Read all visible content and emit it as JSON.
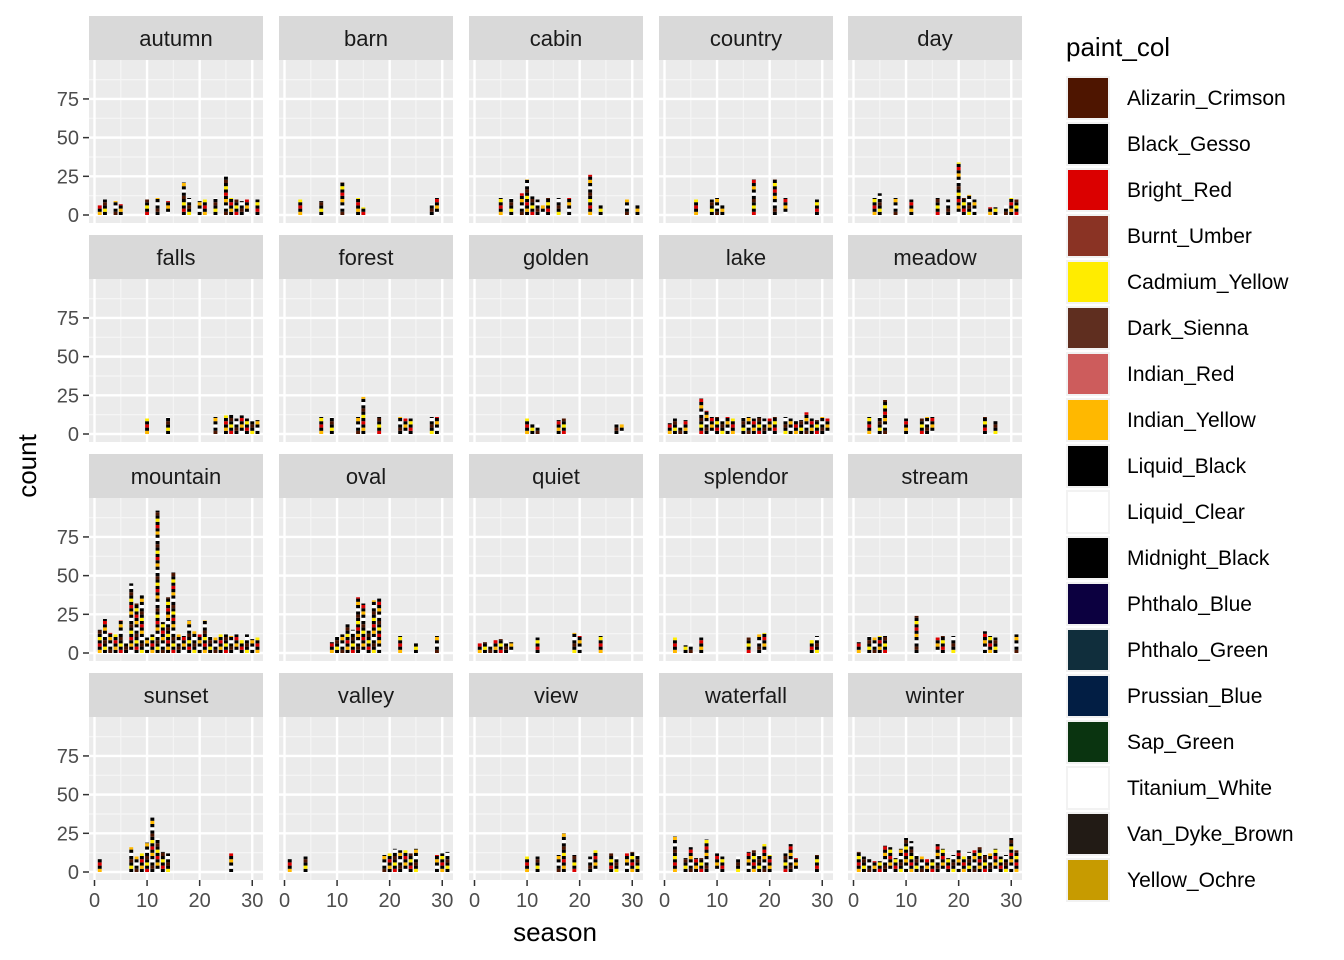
{
  "chart_data": {
    "type": "bar",
    "facet_by": "word",
    "xlabel": "season",
    "ylabel": "count",
    "xlim": [
      0,
      31
    ],
    "ylim": [
      0,
      95
    ],
    "x_ticks": [
      0,
      10,
      20,
      30
    ],
    "y_ticks": [
      0,
      25,
      50,
      75
    ],
    "legend": {
      "title": "paint_col",
      "position": "right",
      "entries": [
        {
          "name": "Alizarin_Crimson",
          "color": "#4E1500"
        },
        {
          "name": "Black_Gesso",
          "color": "#000000"
        },
        {
          "name": "Bright_Red",
          "color": "#DB0000"
        },
        {
          "name": "Burnt_Umber",
          "color": "#8A3324"
        },
        {
          "name": "Cadmium_Yellow",
          "color": "#FFEC00"
        },
        {
          "name": "Dark_Sienna",
          "color": "#5F2E1F"
        },
        {
          "name": "Indian_Red",
          "color": "#CD5C5C"
        },
        {
          "name": "Indian_Yellow",
          "color": "#FFB800"
        },
        {
          "name": "Liquid_Black",
          "color": "#000000"
        },
        {
          "name": "Liquid_Clear",
          "color": "#FFFFFF"
        },
        {
          "name": "Midnight_Black",
          "color": "#000000"
        },
        {
          "name": "Phthalo_Blue",
          "color": "#0C0040"
        },
        {
          "name": "Phthalo_Green",
          "color": "#102E3C"
        },
        {
          "name": "Prussian_Blue",
          "color": "#021E44"
        },
        {
          "name": "Sap_Green",
          "color": "#0A3410"
        },
        {
          "name": "Titanium_White",
          "color": "#FFFFFF"
        },
        {
          "name": "Van_Dyke_Brown",
          "color": "#221B15"
        },
        {
          "name": "Yellow_Ochre",
          "color": "#C79B00"
        }
      ]
    },
    "facets": [
      {
        "label": "autumn",
        "x": [
          1,
          2,
          4,
          5,
          10,
          12,
          14,
          17,
          18,
          20,
          21,
          23,
          25,
          26,
          27,
          28,
          29,
          31
        ],
        "y": [
          6,
          10,
          9,
          7,
          10,
          11,
          9,
          21,
          11,
          9,
          10,
          11,
          25,
          11,
          10,
          9,
          10,
          10
        ]
      },
      {
        "label": "barn",
        "x": [
          3,
          7,
          11,
          14,
          15,
          28,
          29
        ],
        "y": [
          10,
          9,
          21,
          11,
          5,
          7,
          11
        ]
      },
      {
        "label": "cabin",
        "x": [
          5,
          7,
          9,
          10,
          11,
          12,
          13,
          14,
          16,
          18,
          22,
          24,
          29,
          31
        ],
        "y": [
          11,
          11,
          14,
          23,
          12,
          10,
          6,
          11,
          11,
          11,
          26,
          6,
          10,
          6
        ]
      },
      {
        "label": "country",
        "x": [
          6,
          9,
          10,
          11,
          17,
          21,
          23,
          29
        ],
        "y": [
          10,
          10,
          11,
          6,
          23,
          23,
          11,
          10
        ]
      },
      {
        "label": "day",
        "x": [
          4,
          5,
          8,
          11,
          16,
          18,
          20,
          21,
          22,
          23,
          26,
          27,
          29,
          30,
          31
        ],
        "y": [
          11,
          14,
          11,
          10,
          11,
          10,
          34,
          11,
          13,
          10,
          5,
          5,
          6,
          11,
          10
        ]
      },
      {
        "label": "falls",
        "x": [
          10,
          14,
          23,
          25,
          26,
          27,
          28,
          29,
          30,
          31
        ],
        "y": [
          10,
          11,
          11,
          12,
          13,
          10,
          12,
          10,
          9,
          9
        ]
      },
      {
        "label": "forest",
        "x": [
          7,
          9,
          14,
          15,
          18,
          22,
          23,
          24,
          28,
          29
        ],
        "y": [
          11,
          11,
          11,
          24,
          11,
          11,
          10,
          10,
          11,
          11
        ]
      },
      {
        "label": "golden",
        "x": [
          10,
          11,
          12,
          16,
          17,
          27,
          28
        ],
        "y": [
          10,
          6,
          6,
          9,
          10,
          7,
          6
        ]
      },
      {
        "label": "lake",
        "x": [
          1,
          2,
          3,
          4,
          7,
          8,
          9,
          10,
          11,
          12,
          13,
          15,
          16,
          17,
          18,
          19,
          20,
          21,
          23,
          24,
          25,
          26,
          27,
          28,
          29,
          30,
          31
        ],
        "y": [
          7,
          10,
          6,
          9,
          23,
          15,
          11,
          11,
          10,
          11,
          10,
          11,
          11,
          10,
          11,
          10,
          10,
          11,
          11,
          10,
          8,
          9,
          14,
          10,
          9,
          11,
          10
        ]
      },
      {
        "label": "meadow",
        "x": [
          3,
          5,
          6,
          10,
          13,
          14,
          15,
          25,
          27
        ],
        "y": [
          11,
          11,
          22,
          10,
          10,
          11,
          11,
          11,
          8
        ]
      },
      {
        "label": "mountain",
        "x": [
          1,
          2,
          3,
          4,
          5,
          6,
          7,
          8,
          9,
          10,
          11,
          12,
          13,
          14,
          15,
          16,
          17,
          18,
          19,
          20,
          21,
          22,
          23,
          24,
          25,
          26,
          27,
          28,
          29,
          30,
          31
        ],
        "y": [
          15,
          22,
          13,
          12,
          21,
          8,
          45,
          32,
          37,
          10,
          12,
          92,
          20,
          36,
          52,
          12,
          11,
          21,
          14,
          12,
          21,
          11,
          10,
          12,
          12,
          11,
          12,
          8,
          12,
          9,
          10
        ]
      },
      {
        "label": "oval",
        "x": [
          9,
          10,
          11,
          12,
          13,
          14,
          15,
          16,
          17,
          18,
          22,
          25,
          29
        ],
        "y": [
          7,
          11,
          12,
          19,
          15,
          36,
          32,
          16,
          34,
          35,
          11,
          6,
          11
        ]
      },
      {
        "label": "quiet",
        "x": [
          1,
          2,
          3,
          4,
          5,
          6,
          7,
          12,
          19,
          20,
          24
        ],
        "y": [
          6,
          7,
          6,
          8,
          9,
          8,
          7,
          10,
          13,
          11,
          11
        ]
      },
      {
        "label": "splendor",
        "x": [
          2,
          4,
          5,
          7,
          16,
          18,
          19,
          28,
          29
        ],
        "y": [
          10,
          5,
          6,
          10,
          10,
          12,
          13,
          8,
          11
        ]
      },
      {
        "label": "stream",
        "x": [
          1,
          3,
          4,
          5,
          6,
          12,
          16,
          17,
          19,
          25,
          26,
          27,
          31
        ],
        "y": [
          7,
          11,
          10,
          11,
          11,
          24,
          10,
          11,
          11,
          14,
          11,
          10,
          12
        ]
      },
      {
        "label": "sunset",
        "x": [
          1,
          7,
          8,
          9,
          10,
          11,
          12,
          13,
          14,
          26
        ],
        "y": [
          8,
          16,
          10,
          12,
          19,
          35,
          22,
          13,
          12,
          12
        ]
      },
      {
        "label": "valley",
        "x": [
          1,
          4,
          19,
          20,
          21,
          22,
          23,
          24,
          25,
          29,
          30,
          31
        ],
        "y": [
          8,
          10,
          11,
          12,
          15,
          14,
          14,
          12,
          15,
          11,
          12,
          13
        ]
      },
      {
        "label": "view",
        "x": [
          10,
          12,
          16,
          17,
          19,
          22,
          23,
          26,
          27,
          29,
          30,
          31
        ],
        "y": [
          10,
          10,
          11,
          25,
          11,
          10,
          14,
          12,
          10,
          12,
          13,
          12
        ]
      },
      {
        "label": "waterfall",
        "x": [
          2,
          4,
          5,
          6,
          7,
          8,
          10,
          11,
          14,
          16,
          17,
          18,
          19,
          20,
          23,
          24,
          25,
          29
        ],
        "y": [
          23,
          9,
          16,
          9,
          9,
          21,
          12,
          10,
          10,
          13,
          14,
          11,
          18,
          11,
          12,
          18,
          9,
          11
        ]
      },
      {
        "label": "winter",
        "x": [
          1,
          2,
          3,
          4,
          5,
          6,
          7,
          8,
          9,
          10,
          11,
          12,
          13,
          14,
          15,
          16,
          17,
          18,
          19,
          20,
          21,
          22,
          23,
          24,
          25,
          26,
          27,
          28,
          29,
          30,
          31
        ],
        "y": [
          13,
          10,
          8,
          7,
          7,
          17,
          16,
          9,
          15,
          22,
          20,
          12,
          10,
          8,
          8,
          18,
          15,
          9,
          11,
          14,
          10,
          13,
          14,
          16,
          11,
          12,
          15,
          10,
          11,
          22,
          14
        ]
      }
    ]
  }
}
